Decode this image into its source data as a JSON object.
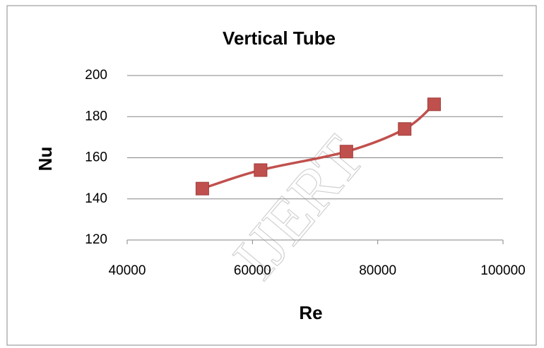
{
  "chart_data": {
    "type": "line",
    "title": "Vertical Tube",
    "xlabel": "Re",
    "ylabel": "Nu",
    "watermark": "IJERT",
    "x": [
      52000,
      61300,
      75000,
      84300,
      89000
    ],
    "series": [
      {
        "name": "Nu",
        "color": "#c0504d",
        "values": [
          145,
          154,
          163,
          174,
          186
        ]
      }
    ],
    "xlim": [
      40000,
      100000
    ],
    "xticks": [
      40000,
      60000,
      80000,
      100000
    ],
    "ylim": [
      120,
      200
    ],
    "yticks": [
      120,
      140,
      160,
      180,
      200
    ],
    "grid": true,
    "legend": false
  }
}
